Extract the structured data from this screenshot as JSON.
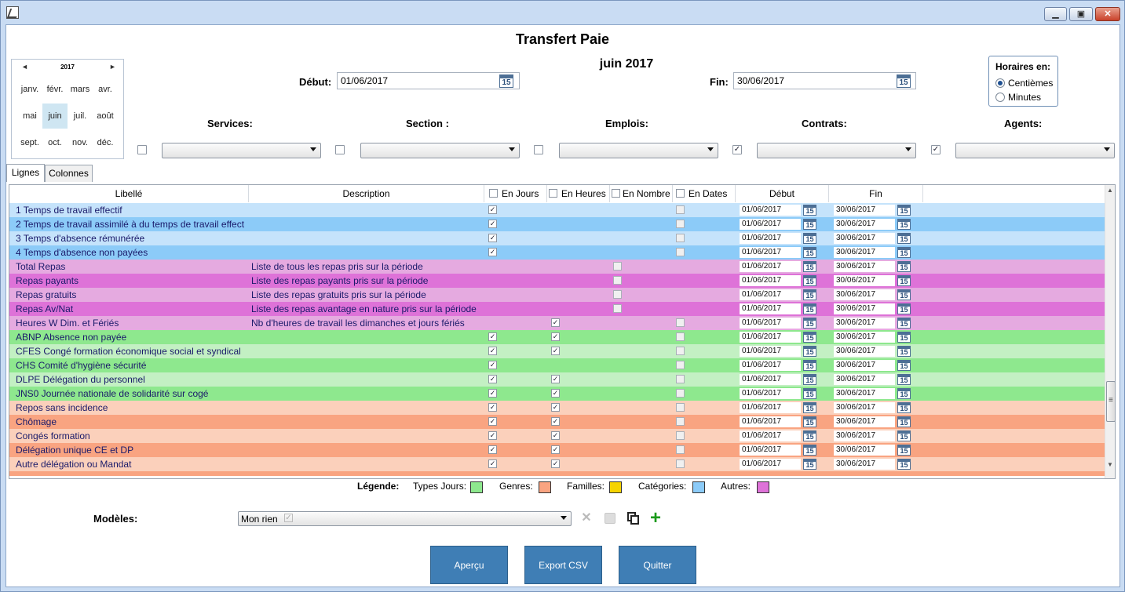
{
  "window": {
    "title": "Transfert Paie",
    "month_label": "juin 2017",
    "min_icon": "minimize-icon",
    "max_icon": "maximize-icon",
    "close_icon": "close-icon"
  },
  "calendar": {
    "year": "2017",
    "prev": "◄",
    "next": "►",
    "months": [
      "janv.",
      "févr.",
      "mars",
      "avr.",
      "mai",
      "juin",
      "juil.",
      "août",
      "sept.",
      "oct.",
      "nov.",
      "déc."
    ],
    "selected": "juin"
  },
  "period": {
    "debut_label": "Début:",
    "debut_value": "01/06/2017",
    "fin_label": "Fin:",
    "fin_value": "30/06/2017",
    "cal_day": "15"
  },
  "horaires": {
    "title": "Horaires en:",
    "options": [
      "Centièmes",
      "Minutes"
    ],
    "selected": "Centièmes"
  },
  "filters": [
    {
      "label": "Services:",
      "checked": false,
      "value": ""
    },
    {
      "label": "Section :",
      "checked": false,
      "value": ""
    },
    {
      "label": "Emplois:",
      "checked": false,
      "value": ""
    },
    {
      "label": "Contrats:",
      "checked": true,
      "value": ""
    },
    {
      "label": "Agents:",
      "checked": true,
      "value": ""
    }
  ],
  "tabs": [
    {
      "label": "Lignes",
      "active": true
    },
    {
      "label": "Colonnes",
      "active": false
    }
  ],
  "grid": {
    "columns": {
      "libelle": "Libellé",
      "description": "Description",
      "en_jours": "En Jours",
      "en_heures": "En Heures",
      "en_nombre": "En Nombre",
      "en_dates": "En Dates",
      "debut": "Début",
      "fin": "Fin"
    },
    "rows": [
      {
        "libelle": "1 Temps de travail effectif",
        "description": "",
        "jours": true,
        "heures": null,
        "nombre": null,
        "dates": false,
        "debut": "01/06/2017",
        "fin": "30/06/2017",
        "color": "#c5e3fb"
      },
      {
        "libelle": "2 Temps de travail assimilé à du temps de travail effect",
        "description": "",
        "jours": true,
        "heures": null,
        "nombre": null,
        "dates": false,
        "debut": "01/06/2017",
        "fin": "30/06/2017",
        "color": "#8ccbf8"
      },
      {
        "libelle": "3 Temps d'absence rémunérée",
        "description": "",
        "jours": true,
        "heures": null,
        "nombre": null,
        "dates": false,
        "debut": "01/06/2017",
        "fin": "30/06/2017",
        "color": "#c5e3fb"
      },
      {
        "libelle": "4 Temps d'absence non payées",
        "description": "",
        "jours": true,
        "heures": null,
        "nombre": null,
        "dates": false,
        "debut": "01/06/2017",
        "fin": "30/06/2017",
        "color": "#8ccbf8"
      },
      {
        "libelle": "Total Repas",
        "description": "Liste de tous les repas pris sur la période",
        "jours": null,
        "heures": null,
        "nombre": false,
        "dates": null,
        "debut": "01/06/2017",
        "fin": "30/06/2017",
        "color": "#e5aae0"
      },
      {
        "libelle": "Repas payants",
        "description": "Liste des repas payants pris sur la période",
        "jours": null,
        "heures": null,
        "nombre": false,
        "dates": null,
        "debut": "01/06/2017",
        "fin": "30/06/2017",
        "color": "#de72d8"
      },
      {
        "libelle": "Repas gratuits",
        "description": "Liste des repas gratuits pris sur la période",
        "jours": null,
        "heures": null,
        "nombre": false,
        "dates": null,
        "debut": "01/06/2017",
        "fin": "30/06/2017",
        "color": "#e5aae0"
      },
      {
        "libelle": "Repas Av/Nat",
        "description": "Liste des repas avantage en nature pris sur la période",
        "jours": null,
        "heures": null,
        "nombre": false,
        "dates": null,
        "debut": "01/06/2017",
        "fin": "30/06/2017",
        "color": "#de72d8"
      },
      {
        "libelle": "Heures W Dim. et Fériés",
        "description": "Nb d'heures de travail les dimanches et jours fériés",
        "jours": null,
        "heures": true,
        "nombre": null,
        "dates": false,
        "debut": "01/06/2017",
        "fin": "30/06/2017",
        "color": "#e5aae0"
      },
      {
        "libelle": "ABNP Absence non payée",
        "description": "",
        "jours": true,
        "heures": true,
        "nombre": null,
        "dates": false,
        "debut": "01/06/2017",
        "fin": "30/06/2017",
        "color": "#8ee88e"
      },
      {
        "libelle": "CFES Congé formation économique social et syndical",
        "description": "",
        "jours": true,
        "heures": true,
        "nombre": null,
        "dates": false,
        "debut": "01/06/2017",
        "fin": "30/06/2017",
        "color": "#c3f0c3"
      },
      {
        "libelle": "CHS Comité d'hygiène sécurité",
        "description": "",
        "jours": true,
        "heures": null,
        "nombre": null,
        "dates": false,
        "debut": "01/06/2017",
        "fin": "30/06/2017",
        "color": "#8ee88e"
      },
      {
        "libelle": "DLPE Délégation du personnel",
        "description": "",
        "jours": true,
        "heures": true,
        "nombre": null,
        "dates": false,
        "debut": "01/06/2017",
        "fin": "30/06/2017",
        "color": "#c3f0c3"
      },
      {
        "libelle": "JNS0 Journée nationale de solidarité sur cogé",
        "description": "",
        "jours": true,
        "heures": true,
        "nombre": null,
        "dates": false,
        "debut": "01/06/2017",
        "fin": "30/06/2017",
        "color": "#8ee88e"
      },
      {
        "libelle": "Repos sans incidence",
        "description": "",
        "jours": true,
        "heures": true,
        "nombre": null,
        "dates": false,
        "debut": "01/06/2017",
        "fin": "30/06/2017",
        "color": "#fbd0bb"
      },
      {
        "libelle": "Chômage",
        "description": "",
        "jours": true,
        "heures": true,
        "nombre": null,
        "dates": false,
        "debut": "01/06/2017",
        "fin": "30/06/2017",
        "color": "#f9a481"
      },
      {
        "libelle": "Congés formation",
        "description": "",
        "jours": true,
        "heures": true,
        "nombre": null,
        "dates": false,
        "debut": "01/06/2017",
        "fin": "30/06/2017",
        "color": "#fbd0bb"
      },
      {
        "libelle": "Délégation unique CE et DP",
        "description": "",
        "jours": true,
        "heures": true,
        "nombre": null,
        "dates": false,
        "debut": "01/06/2017",
        "fin": "30/06/2017",
        "color": "#f9a481"
      },
      {
        "libelle": "Autre délégation ou Mandat",
        "description": "",
        "jours": true,
        "heures": true,
        "nombre": null,
        "dates": false,
        "debut": "01/06/2017",
        "fin": "30/06/2017",
        "color": "#fbd0bb"
      }
    ],
    "check_glyph": "✓",
    "scroll_up": "▲",
    "scroll_down": "▼",
    "scroll_grip": "≡"
  },
  "legend": {
    "title": "Légende:",
    "items": [
      {
        "label": "Types Jours:",
        "color": "#8ee88e"
      },
      {
        "label": "Genres:",
        "color": "#f9a481"
      },
      {
        "label": "Familles:",
        "color": "#f5d300"
      },
      {
        "label": "Catégories:",
        "color": "#8ccbf8"
      },
      {
        "label": "Autres:",
        "color": "#de72d8"
      }
    ]
  },
  "modeles": {
    "label": "Modèles:",
    "value": "Mon rien",
    "icons": [
      "delete-icon",
      "save-icon",
      "copy-icon",
      "add-icon"
    ]
  },
  "buttons": {
    "apercu": "Aperçu",
    "export": "Export CSV",
    "quitter": "Quitter"
  }
}
